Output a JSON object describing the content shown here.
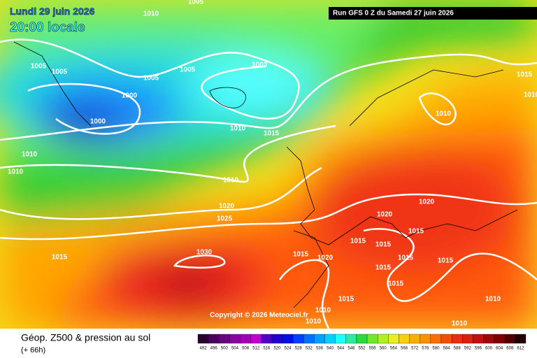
{
  "header": {
    "date": "Lundi 29 juin 2026",
    "time": "20:00 locale",
    "run": "Run GFS 0 Z du Samedi 27 juin 2026"
  },
  "copyright": "Copyright © 2026 Meteociel.fr",
  "footer": {
    "title": "Géop. Z500 & pression au sol",
    "lead": "(+ 66h)"
  },
  "scale": [
    492,
    496,
    500,
    504,
    508,
    512,
    516,
    520,
    524,
    528,
    532,
    536,
    540,
    544,
    548,
    552,
    556,
    560,
    564,
    568,
    572,
    576,
    580,
    584,
    588,
    592,
    596,
    600,
    604,
    608,
    612
  ],
  "isobar_labels": [
    1005,
    1010,
    1005,
    1005,
    1005,
    1005,
    1000,
    1000,
    1000,
    1010,
    1015,
    1010,
    1010,
    1010,
    1020,
    1025,
    1015,
    1030,
    1015,
    1020,
    1020,
    1020,
    1015,
    1015,
    1015,
    1015,
    1015,
    1015,
    1015,
    1015,
    1010,
    1010,
    1010,
    1010,
    1010,
    1015,
    1010
  ]
}
